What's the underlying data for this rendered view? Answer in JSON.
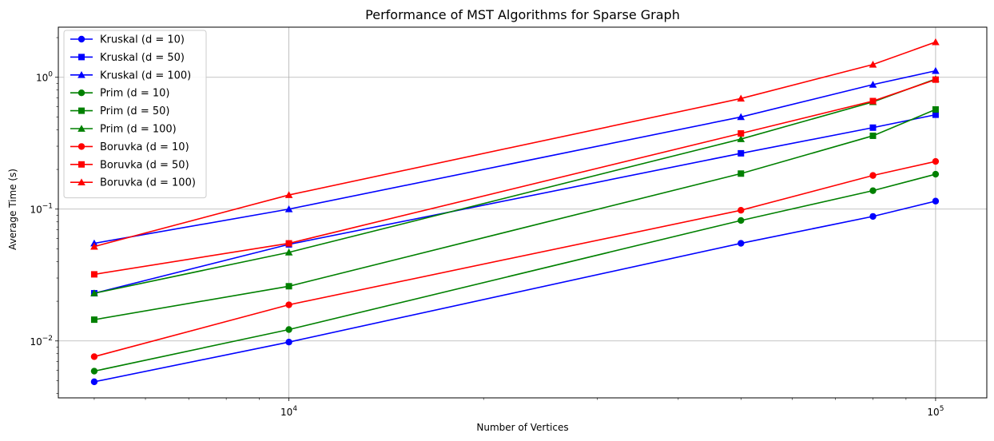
{
  "chart_data": {
    "type": "line",
    "title": "Performance of MST Algorithms for Sparse Graph",
    "xlabel": "Number of Vertices",
    "ylabel": "Average Time (s)",
    "xscale": "log",
    "yscale": "log",
    "xlim": [
      4400,
      120000
    ],
    "ylim": [
      0.0037,
      2.4
    ],
    "grid": true,
    "legend_position": "upper-left",
    "x": [
      5000,
      10000,
      50000,
      80000,
      100000
    ],
    "x_major_ticks": [
      {
        "value": 10000,
        "base": "10",
        "exp": "4"
      },
      {
        "value": 100000,
        "base": "10",
        "exp": "5"
      }
    ],
    "y_major_ticks": [
      {
        "value": 0.01,
        "base": "10",
        "exp": "−2"
      },
      {
        "value": 0.1,
        "base": "10",
        "exp": "−1"
      },
      {
        "value": 1,
        "base": "10",
        "exp": "0"
      }
    ],
    "series": [
      {
        "name": "Kruskal (d = 10)",
        "color": "#0000ff",
        "marker": "circle",
        "values": [
          0.0049,
          0.0098,
          0.055,
          0.088,
          0.115
        ]
      },
      {
        "name": "Kruskal (d = 50)",
        "color": "#0000ff",
        "marker": "square",
        "values": [
          0.023,
          0.054,
          0.265,
          0.415,
          0.52
        ]
      },
      {
        "name": "Kruskal (d = 100)",
        "color": "#0000ff",
        "marker": "triangle",
        "values": [
          0.055,
          0.1,
          0.5,
          0.88,
          1.12
        ]
      },
      {
        "name": "Prim (d = 10)",
        "color": "#008000",
        "marker": "circle",
        "values": [
          0.0059,
          0.0122,
          0.082,
          0.138,
          0.184
        ]
      },
      {
        "name": "Prim (d = 50)",
        "color": "#008000",
        "marker": "square",
        "values": [
          0.0145,
          0.026,
          0.186,
          0.36,
          0.57
        ]
      },
      {
        "name": "Prim (d = 100)",
        "color": "#008000",
        "marker": "triangle",
        "values": [
          0.023,
          0.047,
          0.34,
          0.65,
          0.97
        ]
      },
      {
        "name": "Boruvka (d = 10)",
        "color": "#ff0000",
        "marker": "circle",
        "values": [
          0.0076,
          0.0188,
          0.098,
          0.18,
          0.23
        ]
      },
      {
        "name": "Boruvka (d = 50)",
        "color": "#ff0000",
        "marker": "square",
        "values": [
          0.032,
          0.055,
          0.375,
          0.66,
          0.96
        ]
      },
      {
        "name": "Boruvka (d = 100)",
        "color": "#ff0000",
        "marker": "triangle",
        "values": [
          0.052,
          0.128,
          0.69,
          1.25,
          1.85
        ]
      }
    ]
  }
}
